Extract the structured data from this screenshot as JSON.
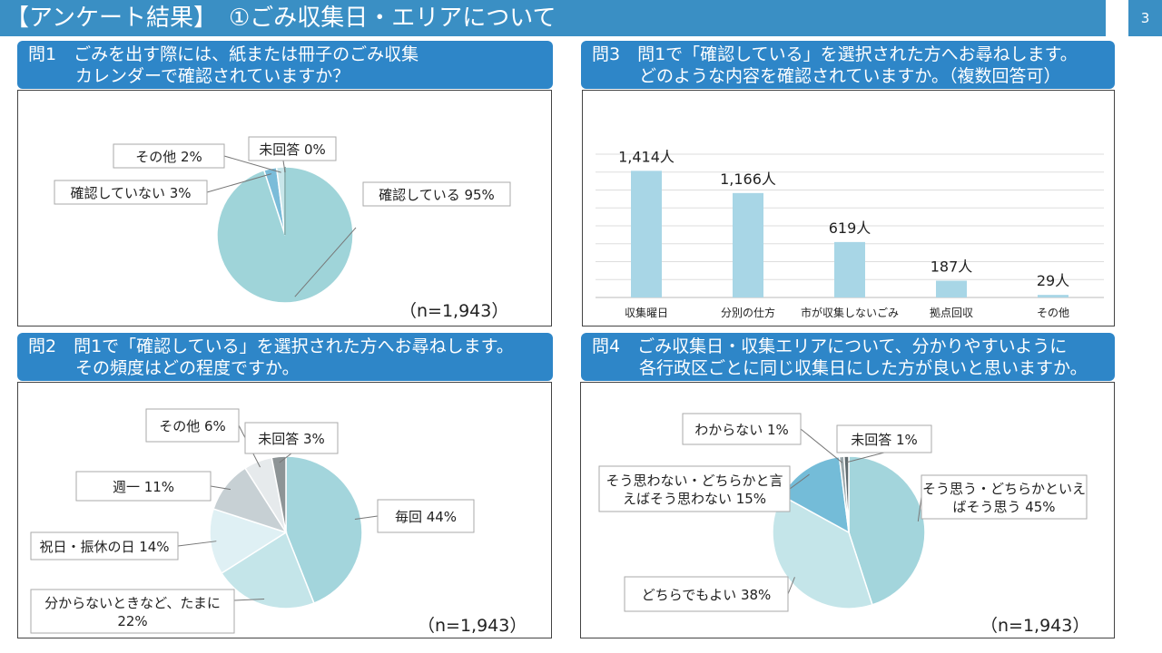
{
  "title": "【アンケート結果】　①ごみ収集日・エリアについて",
  "page_number": "3",
  "q1": {
    "heading_line1": "問1　ごみを出す際には、紙または冊子のごみ収集",
    "heading_line2": "カレンダーで確認されていますか？",
    "n": "（n=1,943）"
  },
  "q2": {
    "heading_line1": "問2　問1で「確認している」を選択された方へお尋ねします。",
    "heading_line2": "その頻度はどの程度ですか。",
    "n": "（n=1,943）"
  },
  "q3": {
    "heading_line1": "問3　問1で「確認している」を選択された方へお尋ねします。",
    "heading_line2": "どのような内容を確認されていますか。（複数回答可）"
  },
  "q4": {
    "heading_line1": "問4　ごみ収集日・収集エリアについて、分かりやすいように",
    "heading_line2": "各行政区ごとに同じ収集日にした方が良いと思いますか。",
    "n": "（n=1,943）"
  },
  "chart_data": [
    {
      "type": "pie",
      "categories": [
        "確認している",
        "確認していない",
        "その他",
        "未回答"
      ],
      "values": [
        95,
        3,
        2,
        0
      ],
      "labels": [
        "確認している  95%",
        "確認していない  3%",
        "その他  2%",
        "未回答  0%"
      ],
      "colors": [
        "#9fd4d9",
        "#7bbcd9",
        "#c9e6ea",
        "#8fb8b8"
      ]
    },
    {
      "type": "bar",
      "categories": [
        "収集曜日",
        "分別の仕方",
        "市が収集しないごみ",
        "拠点回収",
        "その他"
      ],
      "values": [
        1414,
        1166,
        619,
        187,
        29
      ],
      "data_labels": [
        "1,414人",
        "1,166人",
        "619人",
        "187人",
        "29人"
      ],
      "ylim": [
        0,
        1600
      ],
      "grid": true,
      "color": "#a8d6e6"
    },
    {
      "type": "pie",
      "categories": [
        "毎回",
        "分からないときなど、たまに",
        "祝日・振休の日",
        "週一",
        "その他",
        "未回答"
      ],
      "values": [
        44,
        22,
        14,
        11,
        6,
        3
      ],
      "labels": [
        "毎回  44%",
        "分からないときなど、たまに\n22%",
        "祝日・振休の日  14%",
        "週一  11%",
        "その他  6%",
        "未回答  3%"
      ],
      "colors": [
        "#a3d5dc",
        "#c4e5e9",
        "#dff0f4",
        "#c7d0d4",
        "#e6eaec",
        "#8d9496"
      ]
    },
    {
      "type": "pie",
      "categories": [
        "そう思う・どちらかといえばそう思う",
        "どちらでもよい",
        "そう思わない・どちらかと言えばそう思わない",
        "わからない",
        "未回答"
      ],
      "values": [
        45,
        38,
        15,
        1,
        1
      ],
      "labels": [
        "そう思う・どちらかといえ\nばそう思う  45%",
        "どちらでもよい  38%",
        "そう思わない・どちらかと言\nえばそう思わない  15%",
        "わからない  1%",
        "未回答  1%"
      ],
      "colors": [
        "#a3d5dc",
        "#c4e5e9",
        "#74bcd8",
        "#9aa6aa",
        "#5f6a6e"
      ]
    }
  ]
}
